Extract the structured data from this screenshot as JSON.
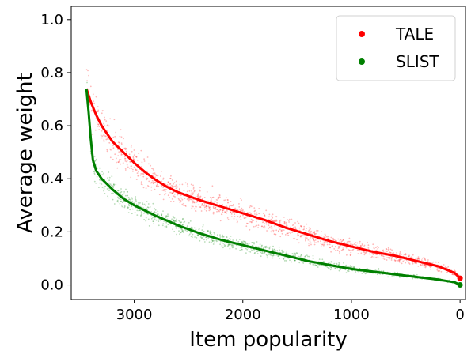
{
  "chart_data": {
    "type": "scatter",
    "title": "",
    "xlabel": "Item popularity",
    "ylabel": "Average weight",
    "xlim": [
      3580,
      -50
    ],
    "ylim": [
      -0.055,
      1.05
    ],
    "x_inverted": true,
    "xticks": [
      3000,
      2000,
      1000,
      0
    ],
    "xtick_labels": [
      "3000",
      "2000",
      "1000",
      "0"
    ],
    "yticks": [
      0.0,
      0.2,
      0.4,
      0.6,
      0.8,
      1.0
    ],
    "ytick_labels": [
      "0.0",
      "0.2",
      "0.4",
      "0.6",
      "0.8",
      "1.0"
    ],
    "grid": false,
    "legend_position": "top-right",
    "series": [
      {
        "name": "TALE",
        "color": "#ff0000",
        "trend_x": [
          3440,
          3400,
          3350,
          3300,
          3200,
          3100,
          3000,
          2900,
          2800,
          2700,
          2600,
          2500,
          2400,
          2200,
          2000,
          1800,
          1600,
          1400,
          1200,
          1000,
          800,
          600,
          400,
          200,
          50,
          0
        ],
        "trend_y": [
          0.74,
          0.69,
          0.64,
          0.6,
          0.54,
          0.5,
          0.46,
          0.425,
          0.395,
          0.37,
          0.35,
          0.335,
          0.32,
          0.295,
          0.27,
          0.245,
          0.215,
          0.19,
          0.165,
          0.145,
          0.125,
          0.11,
          0.09,
          0.07,
          0.045,
          0.025
        ],
        "spread": [
          0.13,
          0.12,
          0.11,
          0.1,
          0.09,
          0.085,
          0.08,
          0.075,
          0.07,
          0.065,
          0.06,
          0.06,
          0.06,
          0.055,
          0.05,
          0.05,
          0.045,
          0.045,
          0.04,
          0.04,
          0.035,
          0.03,
          0.025,
          0.02,
          0.015,
          0.01
        ]
      },
      {
        "name": "SLIST",
        "color": "#008000",
        "trend_x": [
          3440,
          3420,
          3400,
          3380,
          3350,
          3300,
          3200,
          3100,
          3000,
          2900,
          2800,
          2600,
          2400,
          2200,
          2000,
          1800,
          1600,
          1400,
          1200,
          1000,
          800,
          600,
          400,
          200,
          50,
          0
        ],
        "trend_y": [
          0.74,
          0.65,
          0.55,
          0.47,
          0.43,
          0.4,
          0.36,
          0.325,
          0.3,
          0.28,
          0.26,
          0.225,
          0.195,
          0.17,
          0.15,
          0.13,
          0.11,
          0.09,
          0.075,
          0.06,
          0.05,
          0.04,
          0.03,
          0.02,
          0.01,
          0.0
        ],
        "spread": [
          0.06,
          0.08,
          0.08,
          0.07,
          0.065,
          0.06,
          0.055,
          0.05,
          0.045,
          0.045,
          0.04,
          0.04,
          0.035,
          0.035,
          0.03,
          0.03,
          0.025,
          0.02,
          0.02,
          0.015,
          0.012,
          0.01,
          0.008,
          0.006,
          0.004,
          0.003
        ]
      }
    ]
  }
}
